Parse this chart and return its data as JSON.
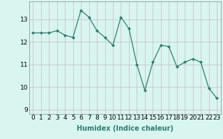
{
  "x": [
    0,
    1,
    2,
    3,
    4,
    5,
    6,
    7,
    8,
    9,
    10,
    11,
    12,
    13,
    14,
    15,
    16,
    17,
    18,
    19,
    20,
    21,
    22,
    23
  ],
  "y": [
    12.4,
    12.4,
    12.4,
    12.5,
    12.3,
    12.2,
    13.4,
    13.1,
    12.5,
    12.2,
    11.85,
    13.1,
    12.6,
    11.0,
    9.85,
    11.1,
    11.85,
    11.8,
    10.9,
    11.1,
    11.25,
    11.1,
    9.95,
    9.5
  ],
  "line_color": "#2e7d6e",
  "marker": "D",
  "marker_size": 2,
  "bg_color": "#d8f5f0",
  "grid_color": "#c8b8c8",
  "xlabel": "Humidex (Indice chaleur)",
  "xlim": [
    -0.5,
    23.5
  ],
  "ylim": [
    8.8,
    13.8
  ],
  "yticks": [
    9,
    10,
    11,
    12,
    13
  ],
  "xtick_labels": [
    "0",
    "1",
    "2",
    "3",
    "4",
    "5",
    "6",
    "7",
    "8",
    "9",
    "10",
    "11",
    "12",
    "13",
    "14",
    "15",
    "16",
    "17",
    "18",
    "19",
    "20",
    "21",
    "22",
    "23"
  ],
  "xlabel_fontsize": 7,
  "tick_fontsize": 6.5
}
